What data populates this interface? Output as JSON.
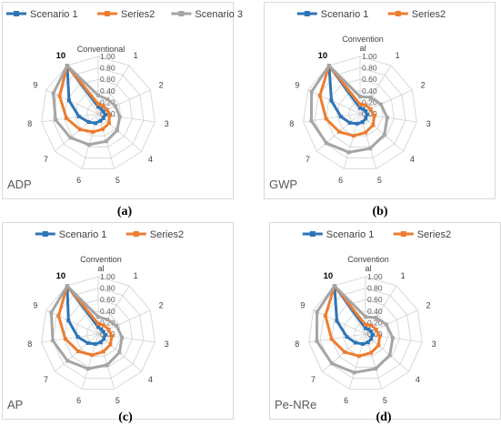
{
  "chart_data": [
    {
      "type": "radar",
      "panel_label": "ADP",
      "caption": "(a)",
      "categories": [
        "Conventional",
        "1",
        "2",
        "3",
        "4",
        "5",
        "6",
        "7",
        "8",
        "9",
        "10"
      ],
      "ticks": [
        "0.00",
        "0.20",
        "0.40",
        "0.60",
        "0.80",
        "1.00"
      ],
      "rlim": [
        0,
        1
      ],
      "legend_position": "top",
      "series": [
        {
          "name": "Scenario 1",
          "color": "#2e75b6",
          "values": [
            0.12,
            0.1,
            0.1,
            0.12,
            0.12,
            0.13,
            0.17,
            0.22,
            0.34,
            0.56,
            1.0
          ]
        },
        {
          "name": "Series2",
          "color": "#ed7d31",
          "values": [
            0.17,
            0.16,
            0.17,
            0.2,
            0.25,
            0.28,
            0.33,
            0.42,
            0.56,
            0.74,
            1.0
          ]
        },
        {
          "name": "Scenario 3",
          "color": "#a5a5a5",
          "values": [
            0.32,
            0.3,
            0.33,
            0.38,
            0.44,
            0.5,
            0.56,
            0.64,
            0.75,
            0.86,
            1.0
          ]
        }
      ]
    },
    {
      "type": "radar",
      "panel_label": "GWP",
      "caption": "(b)",
      "categories": [
        "Convention al",
        "1",
        "2",
        "3",
        "4",
        "5",
        "6",
        "7",
        "8",
        "9",
        "10"
      ],
      "ticks": [
        "0.00",
        "0.20",
        "0.40",
        "0.60",
        "0.80",
        "1.00"
      ],
      "rlim": [
        0,
        1
      ],
      "legend_position": "top",
      "series": [
        {
          "name": "Scenario 1",
          "color": "#2e75b6",
          "values": [
            0.1,
            0.1,
            0.11,
            0.12,
            0.13,
            0.15,
            0.18,
            0.24,
            0.34,
            0.55,
            1.0
          ]
        },
        {
          "name": "Series2",
          "color": "#ed7d31",
          "values": [
            0.16,
            0.18,
            0.2,
            0.25,
            0.3,
            0.34,
            0.4,
            0.48,
            0.6,
            0.77,
            1.0
          ]
        },
        {
          "name": "",
          "color": "#a5a5a5",
          "values": [
            0.3,
            0.34,
            0.4,
            0.48,
            0.56,
            0.63,
            0.7,
            0.78,
            0.86,
            0.93,
            1.0
          ]
        }
      ]
    },
    {
      "type": "radar",
      "panel_label": "AP",
      "caption": "(c)",
      "categories": [
        "Convention al",
        "1",
        "2",
        "3",
        "4",
        "5",
        "6",
        "7",
        "8",
        "9",
        "10"
      ],
      "ticks": [
        "0.00",
        "0.20",
        "0.40",
        "0.60",
        "0.80",
        "1.00"
      ],
      "rlim": [
        0,
        1
      ],
      "legend_position": "top",
      "series": [
        {
          "name": "Scenario 1",
          "color": "#2e75b6",
          "values": [
            0.12,
            0.1,
            0.1,
            0.12,
            0.13,
            0.15,
            0.18,
            0.24,
            0.36,
            0.57,
            1.0
          ]
        },
        {
          "name": "Series2",
          "color": "#ed7d31",
          "values": [
            0.18,
            0.18,
            0.2,
            0.24,
            0.28,
            0.32,
            0.38,
            0.46,
            0.58,
            0.76,
            1.0
          ]
        },
        {
          "name": "",
          "color": "#a5a5a5",
          "values": [
            0.3,
            0.3,
            0.35,
            0.42,
            0.49,
            0.56,
            0.63,
            0.71,
            0.8,
            0.9,
            1.0
          ]
        }
      ]
    },
    {
      "type": "radar",
      "panel_label": "Pe-NRe",
      "caption": "(d)",
      "categories": [
        "Convention al",
        "1",
        "2",
        "3",
        "4",
        "5",
        "6",
        "7",
        "8",
        "9",
        "10"
      ],
      "ticks": [
        "0.00",
        "0.20",
        "0.40",
        "0.60",
        "0.80",
        "1.00"
      ],
      "rlim": [
        0,
        1
      ],
      "legend_position": "top",
      "series": [
        {
          "name": "Scenario 1",
          "color": "#2e75b6",
          "values": [
            0.1,
            0.1,
            0.11,
            0.12,
            0.13,
            0.15,
            0.18,
            0.23,
            0.33,
            0.55,
            1.0
          ]
        },
        {
          "name": "Series2",
          "color": "#ed7d31",
          "values": [
            0.16,
            0.18,
            0.2,
            0.25,
            0.3,
            0.34,
            0.4,
            0.48,
            0.6,
            0.77,
            1.0
          ]
        },
        {
          "name": "",
          "color": "#a5a5a5",
          "values": [
            0.3,
            0.34,
            0.4,
            0.48,
            0.56,
            0.63,
            0.7,
            0.78,
            0.86,
            0.93,
            1.0
          ]
        }
      ]
    }
  ]
}
